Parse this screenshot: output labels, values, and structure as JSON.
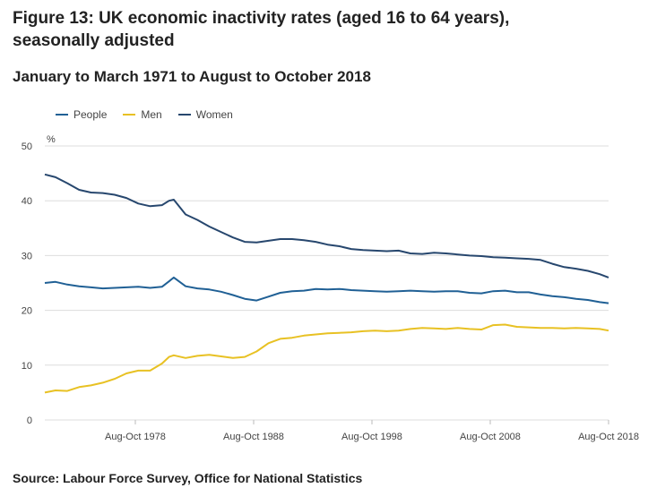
{
  "chart_data": {
    "type": "line",
    "title": "Figure 13: UK economic inactivity rates (aged 16 to 64 years), seasonally adjusted",
    "subtitle": "January to March 1971 to August to October 2018",
    "ylabel": "%",
    "xlabel": "",
    "ylim": [
      0,
      50
    ],
    "xlim": [
      1971.1,
      2018.75
    ],
    "yticks": [
      0,
      10,
      20,
      30,
      40,
      50
    ],
    "xticks": [
      {
        "x": 1978.75,
        "label": "Aug-Oct 1978"
      },
      {
        "x": 1988.75,
        "label": "Aug-Oct 1988"
      },
      {
        "x": 1998.75,
        "label": "Aug-Oct 1998"
      },
      {
        "x": 2008.75,
        "label": "Aug-Oct 2008"
      },
      {
        "x": 2018.75,
        "label": "Aug-Oct 2018"
      }
    ],
    "x": [
      1971.1,
      1972,
      1973,
      1974,
      1975,
      1976,
      1977,
      1978,
      1979,
      1980,
      1981,
      1981.6,
      1982,
      1983,
      1984,
      1985,
      1986,
      1987,
      1988,
      1989,
      1990,
      1991,
      1992,
      1993,
      1994,
      1995,
      1996,
      1997,
      1998,
      1999,
      2000,
      2001,
      2002,
      2003,
      2004,
      2005,
      2006,
      2007,
      2008,
      2009,
      2010,
      2011,
      2012,
      2013,
      2014,
      2015,
      2016,
      2017,
      2018,
      2018.75
    ],
    "series": [
      {
        "name": "People",
        "color": "#206095",
        "values": [
          25.0,
          25.2,
          24.7,
          24.4,
          24.2,
          24.0,
          24.1,
          24.2,
          24.3,
          24.1,
          24.3,
          25.3,
          26.0,
          24.4,
          24.0,
          23.8,
          23.4,
          22.8,
          22.1,
          21.8,
          22.5,
          23.2,
          23.5,
          23.6,
          23.9,
          23.8,
          23.9,
          23.7,
          23.6,
          23.5,
          23.4,
          23.5,
          23.6,
          23.5,
          23.4,
          23.5,
          23.5,
          23.2,
          23.1,
          23.5,
          23.6,
          23.3,
          23.3,
          22.9,
          22.6,
          22.4,
          22.1,
          21.9,
          21.5,
          21.3
        ]
      },
      {
        "name": "Men",
        "color": "#e8c123",
        "values": [
          5.0,
          5.4,
          5.3,
          6.0,
          6.3,
          6.8,
          7.5,
          8.5,
          9.0,
          9.0,
          10.3,
          11.5,
          11.8,
          11.3,
          11.7,
          11.9,
          11.6,
          11.3,
          11.5,
          12.5,
          14.0,
          14.8,
          15.0,
          15.4,
          15.6,
          15.8,
          15.9,
          16.0,
          16.2,
          16.3,
          16.2,
          16.3,
          16.6,
          16.8,
          16.7,
          16.6,
          16.8,
          16.6,
          16.5,
          17.3,
          17.4,
          17.0,
          16.9,
          16.8,
          16.8,
          16.7,
          16.8,
          16.7,
          16.6,
          16.3
        ]
      },
      {
        "name": "Women",
        "color": "#27476e",
        "values": [
          44.8,
          44.3,
          43.2,
          42.0,
          41.5,
          41.4,
          41.1,
          40.5,
          39.5,
          39.0,
          39.2,
          40.0,
          40.2,
          37.5,
          36.5,
          35.3,
          34.3,
          33.3,
          32.5,
          32.4,
          32.7,
          33.0,
          33.0,
          32.8,
          32.5,
          32.0,
          31.7,
          31.2,
          31.0,
          30.9,
          30.8,
          30.9,
          30.4,
          30.3,
          30.5,
          30.4,
          30.2,
          30.0,
          29.9,
          29.7,
          29.6,
          29.5,
          29.4,
          29.2,
          28.5,
          27.9,
          27.6,
          27.2,
          26.6,
          26.0
        ]
      }
    ]
  },
  "source": "Source: Labour Force Survey, Office for National Statistics"
}
